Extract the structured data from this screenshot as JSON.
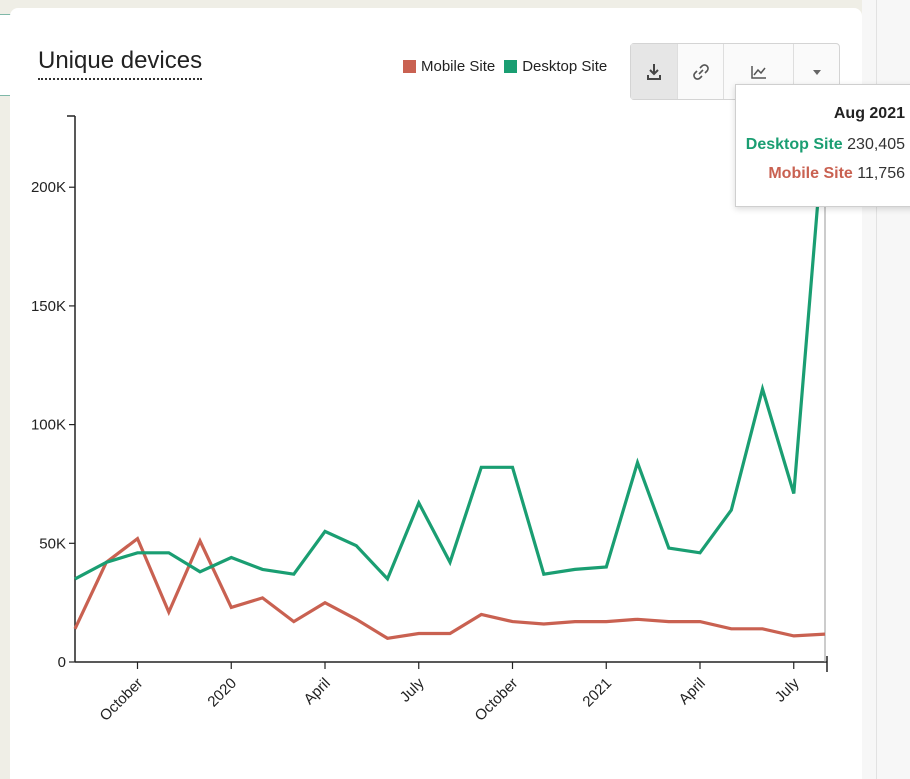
{
  "chart_data": {
    "type": "line",
    "title": "Unique devices",
    "x": [
      "2019-08",
      "2019-09",
      "2019-10",
      "2019-11",
      "2019-12",
      "2020-01",
      "2020-02",
      "2020-03",
      "2020-04",
      "2020-05",
      "2020-06",
      "2020-07",
      "2020-08",
      "2020-09",
      "2020-10",
      "2020-11",
      "2020-12",
      "2021-01",
      "2021-02",
      "2021-03",
      "2021-04",
      "2021-05",
      "2021-06",
      "2021-07",
      "2021-08"
    ],
    "series": [
      {
        "name": "Desktop Site",
        "color": "#1a9e72",
        "values": [
          35000,
          42000,
          46000,
          46000,
          38000,
          44000,
          39000,
          37000,
          55000,
          49000,
          35000,
          67000,
          42000,
          82000,
          82000,
          37000,
          39000,
          40000,
          84000,
          48000,
          46000,
          64000,
          115000,
          71000,
          230405
        ]
      },
      {
        "name": "Mobile Site",
        "color": "#c96151",
        "values": [
          14000,
          42000,
          52000,
          21000,
          51000,
          23000,
          27000,
          17000,
          25000,
          18000,
          10000,
          12000,
          12000,
          20000,
          17000,
          16000,
          17000,
          17000,
          18000,
          17000,
          17000,
          14000,
          14000,
          11000,
          11756
        ]
      }
    ],
    "x_tick_labels": [
      {
        "x": "2019-10",
        "label": "October"
      },
      {
        "x": "2020-01",
        "label": "2020"
      },
      {
        "x": "2020-04",
        "label": "April"
      },
      {
        "x": "2020-07",
        "label": "July"
      },
      {
        "x": "2020-10",
        "label": "October"
      },
      {
        "x": "2021-01",
        "label": "2021"
      },
      {
        "x": "2021-04",
        "label": "April"
      },
      {
        "x": "2021-07",
        "label": "July"
      }
    ],
    "y_ticks": [
      0,
      50000,
      100000,
      150000,
      200000
    ],
    "y_tick_labels": [
      "0",
      "50K",
      "100K",
      "150K",
      "200K"
    ],
    "ylim": [
      0,
      230000
    ],
    "legend_position": "top-right",
    "grid": false
  },
  "legend": {
    "mobile_label": "Mobile Site",
    "desktop_label": "Desktop Site",
    "mobile_color": "#c96151",
    "desktop_color": "#1a9e72"
  },
  "toolbar": {
    "buttons": [
      "download-icon",
      "link-icon",
      "chart-type-icon",
      "caret-down-icon"
    ]
  },
  "tooltip": {
    "date": "Aug 2021",
    "desktop_label": "Desktop Site",
    "desktop_value": "230,405",
    "mobile_label": "Mobile Site",
    "mobile_value": "11,756"
  }
}
